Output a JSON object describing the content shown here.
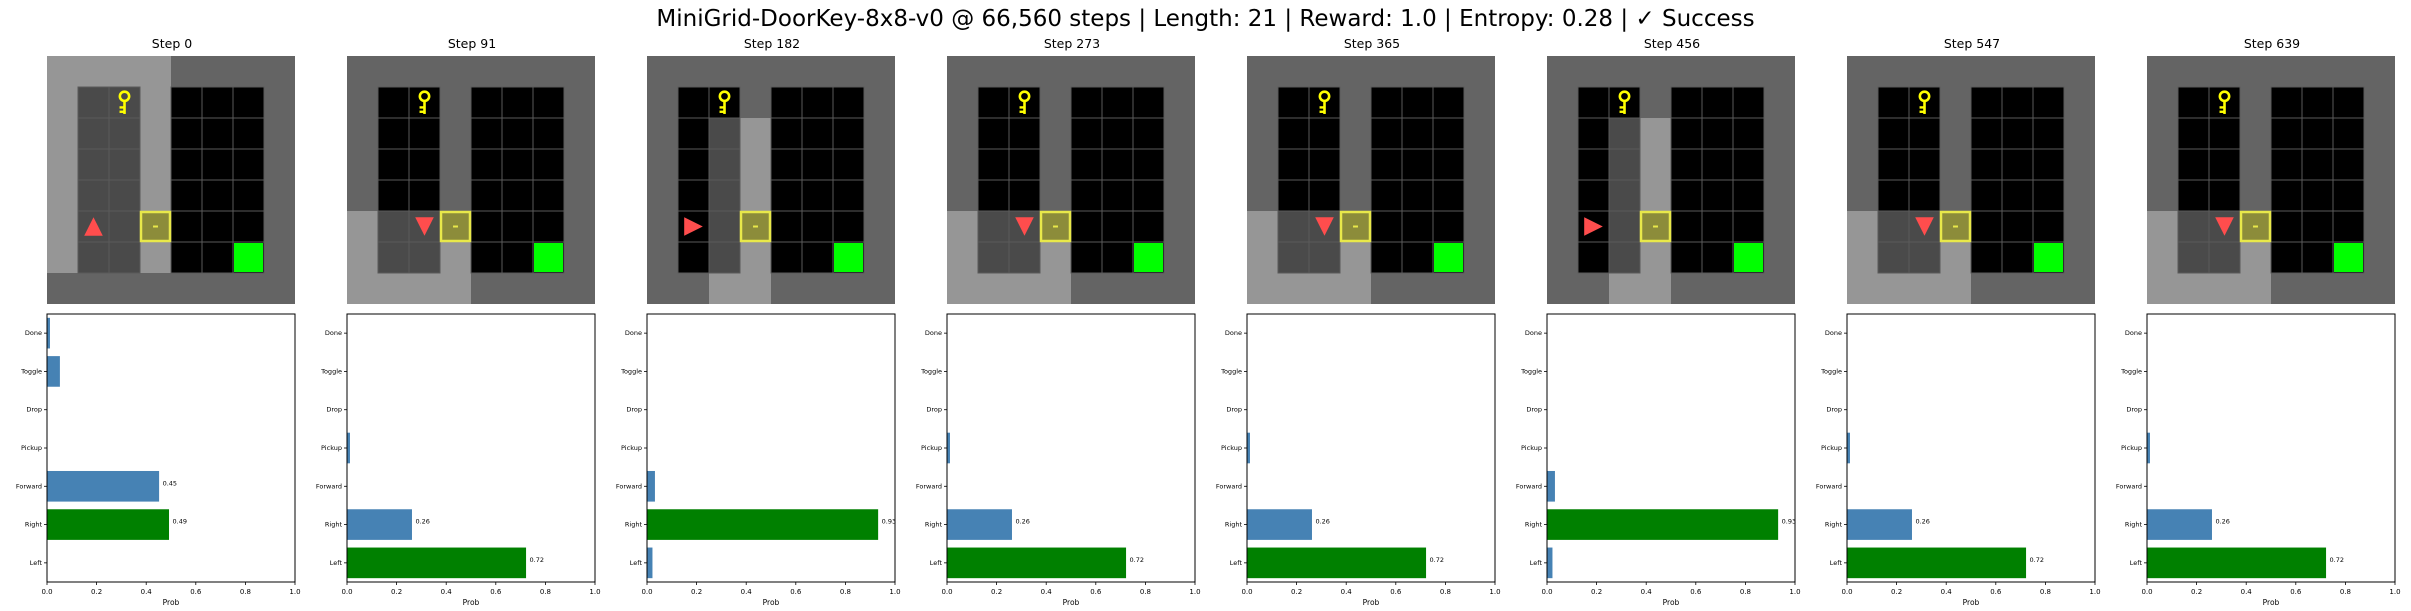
{
  "title": "MiniGrid-DoorKey-8x8-v0 @ 66,560 steps | Length: 21 | Reward: 1.0 | Entropy: 0.28 | ✓ Success",
  "colors": {
    "wall": "#646464",
    "floor": "#000000",
    "visible": "#969696",
    "gridline": "#5a5a5a",
    "key": "#ffff00",
    "door_fill": "#8c8c3a",
    "door_edge": "#e8e84a",
    "goal": "#00ff00",
    "agent": "#ff4d4d",
    "bar_default": "#4682b4",
    "bar_chosen": "#008000"
  },
  "env": {
    "key_cell": [
      2,
      1
    ],
    "door_cell": [
      3,
      5
    ],
    "goal_cell": [
      6,
      6
    ],
    "divider_col": 3,
    "floor_left_cols": [
      1,
      2
    ],
    "floor_right_cols": [
      4,
      5,
      6
    ],
    "floor_rows": [
      1,
      2,
      3,
      4,
      5,
      6
    ]
  },
  "chart_data": {
    "type": "bar",
    "orientation": "horizontal",
    "categories": [
      "Left",
      "Right",
      "Forward",
      "Pickup",
      "Drop",
      "Toggle",
      "Done"
    ],
    "xlabel": "Prob",
    "xlim": [
      0,
      1.0
    ],
    "xticks": [
      "0.0",
      "0.2",
      "0.4",
      "0.6",
      "0.8",
      "1.0"
    ],
    "panels": [
      {
        "step": "Step 0",
        "values": [
          0,
          0.49,
          0.45,
          0,
          0,
          0.05,
          0.01
        ],
        "chosen": 1,
        "labels": {
          "1": "0.49",
          "2": "0.45"
        },
        "agent_cell": [
          1,
          5
        ],
        "agent_dir": "up",
        "view": {
          "c0": 0,
          "c1": 3,
          "r0": 0,
          "r1": 6
        }
      },
      {
        "step": "Step 91",
        "values": [
          0.72,
          0.26,
          0,
          0.01,
          0,
          0,
          0
        ],
        "chosen": 0,
        "labels": {
          "0": "0.72",
          "1": "0.26"
        },
        "agent_cell": [
          2,
          5
        ],
        "agent_dir": "down",
        "view": {
          "c0": 0,
          "c1": 3,
          "r0": 5,
          "r1": 7
        }
      },
      {
        "step": "Step 182",
        "values": [
          0.02,
          0.93,
          0.03,
          0,
          0,
          0,
          0
        ],
        "chosen": 1,
        "labels": {
          "1": "0.93"
        },
        "agent_cell": [
          1,
          5
        ],
        "agent_dir": "right",
        "view": {
          "c0": 2,
          "c1": 3,
          "r0": 2,
          "r1": 7
        }
      },
      {
        "step": "Step 273",
        "values": [
          0.72,
          0.26,
          0,
          0.01,
          0,
          0,
          0
        ],
        "chosen": 0,
        "labels": {
          "0": "0.72",
          "1": "0.26"
        },
        "agent_cell": [
          2,
          5
        ],
        "agent_dir": "down",
        "view": {
          "c0": 0,
          "c1": 3,
          "r0": 5,
          "r1": 7
        }
      },
      {
        "step": "Step 365",
        "values": [
          0.72,
          0.26,
          0,
          0.01,
          0,
          0,
          0
        ],
        "chosen": 0,
        "labels": {
          "0": "0.72",
          "1": "0.26"
        },
        "agent_cell": [
          2,
          5
        ],
        "agent_dir": "down",
        "view": {
          "c0": 0,
          "c1": 3,
          "r0": 5,
          "r1": 7
        }
      },
      {
        "step": "Step 456",
        "values": [
          0.02,
          0.93,
          0.03,
          0,
          0,
          0,
          0
        ],
        "chosen": 1,
        "labels": {
          "1": "0.93"
        },
        "agent_cell": [
          1,
          5
        ],
        "agent_dir": "right",
        "view": {
          "c0": 2,
          "c1": 3,
          "r0": 2,
          "r1": 7
        }
      },
      {
        "step": "Step 547",
        "values": [
          0.72,
          0.26,
          0,
          0.01,
          0,
          0,
          0
        ],
        "chosen": 0,
        "labels": {
          "0": "0.72",
          "1": "0.26"
        },
        "agent_cell": [
          2,
          5
        ],
        "agent_dir": "down",
        "view": {
          "c0": 0,
          "c1": 3,
          "r0": 5,
          "r1": 7
        }
      },
      {
        "step": "Step 639",
        "values": [
          0.72,
          0.26,
          0,
          0.01,
          0,
          0,
          0
        ],
        "chosen": 0,
        "labels": {
          "0": "0.72",
          "1": "0.26"
        },
        "agent_cell": [
          2,
          5
        ],
        "agent_dir": "down",
        "view": {
          "c0": 0,
          "c1": 3,
          "r0": 5,
          "r1": 7
        }
      }
    ]
  }
}
